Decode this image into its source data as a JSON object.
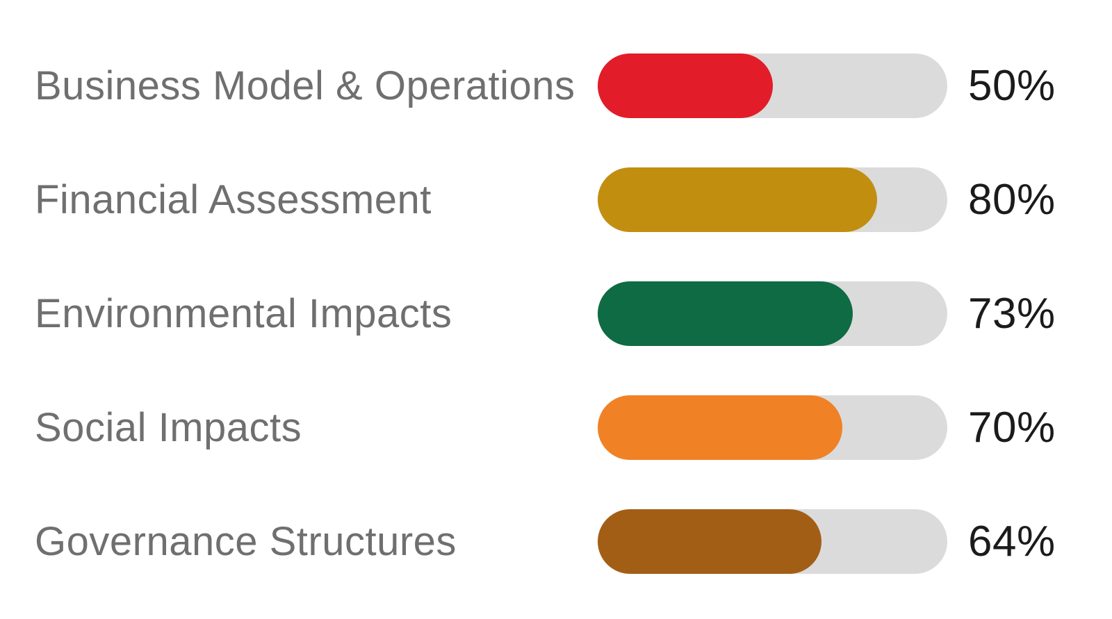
{
  "chart_data": {
    "type": "bar",
    "orientation": "horizontal",
    "title": "",
    "xlabel": "",
    "ylabel": "",
    "categories": [
      "Business Model & Operations",
      "Financial Assessment",
      "Environmental Impacts",
      "Social Impacts",
      "Governance Structures"
    ],
    "values": [
      50,
      80,
      73,
      70,
      64
    ],
    "value_labels": [
      "50%",
      "80%",
      "73%",
      "70%",
      "64%"
    ],
    "bar_colors": [
      "#E21C29",
      "#C28E10",
      "#0E6B43",
      "#F08125",
      "#A35E16"
    ],
    "track_color": "#DBDBDB",
    "label_color": "#6F6F6F",
    "value_color": "#1B1B1B",
    "background_color": "#FFFFFF",
    "xlim": [
      0,
      100
    ],
    "grid": false,
    "legend": false
  }
}
